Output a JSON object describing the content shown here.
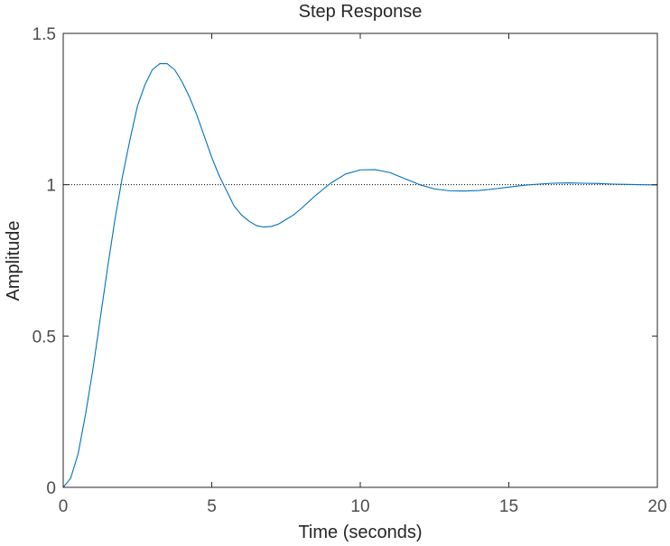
{
  "chart_data": {
    "type": "line",
    "title": "Step Response",
    "xlabel": "Time (seconds)",
    "ylabel": "Amplitude",
    "xlim": [
      0,
      20
    ],
    "ylim": [
      0,
      1.5
    ],
    "x_ticks": [
      0,
      5,
      10,
      15,
      20
    ],
    "x_tick_labels": [
      "0",
      "5",
      "10",
      "15",
      "20"
    ],
    "y_ticks": [
      0,
      0.5,
      1,
      1.5
    ],
    "y_tick_labels": [
      "0",
      "0.5",
      "1",
      "1.5"
    ],
    "grid": false,
    "reference_line": {
      "y": 1,
      "style": "dotted"
    },
    "series": [
      {
        "color": "#0072bd",
        "x": [
          0,
          0.25,
          0.5,
          0.75,
          1,
          1.25,
          1.5,
          1.75,
          2,
          2.25,
          2.5,
          2.75,
          3,
          3.25,
          3.5,
          3.75,
          4,
          4.25,
          4.5,
          4.75,
          5,
          5.25,
          5.5,
          5.75,
          6,
          6.25,
          6.5,
          6.75,
          7,
          7.25,
          7.5,
          7.75,
          8,
          8.5,
          9,
          9.5,
          10,
          10.5,
          11,
          11.5,
          12,
          12.5,
          13,
          13.5,
          14,
          14.5,
          15,
          15.5,
          16,
          16.5,
          17,
          17.5,
          18,
          18.5,
          19,
          19.5,
          20
        ],
        "y": [
          0,
          0.03,
          0.11,
          0.24,
          0.39,
          0.56,
          0.73,
          0.89,
          1.03,
          1.15,
          1.26,
          1.33,
          1.38,
          1.4,
          1.4,
          1.38,
          1.34,
          1.29,
          1.23,
          1.16,
          1.09,
          1.03,
          0.98,
          0.93,
          0.9,
          0.88,
          0.865,
          0.86,
          0.862,
          0.87,
          0.885,
          0.9,
          0.92,
          0.965,
          1.005,
          1.035,
          1.049,
          1.05,
          1.04,
          1.02,
          1.0,
          0.986,
          0.98,
          0.979,
          0.981,
          0.986,
          0.992,
          0.998,
          1.002,
          1.005,
          1.006,
          1.005,
          1.004,
          1.002,
          1.001,
          1.0,
          0.999
        ]
      }
    ]
  }
}
